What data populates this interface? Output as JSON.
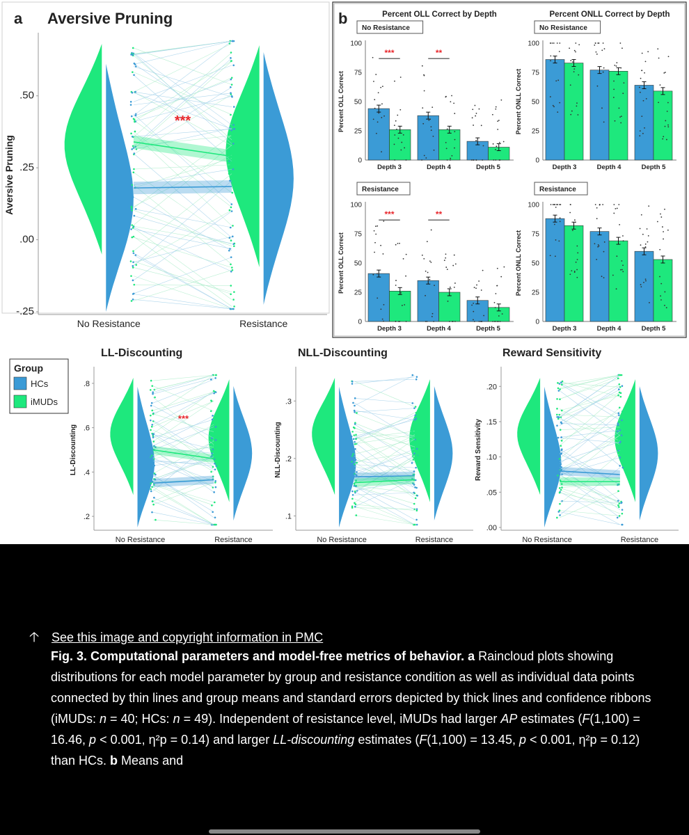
{
  "figure": {
    "panel_a_letter": "a",
    "panel_b_letter": "b",
    "legend": {
      "title": "Group",
      "items": [
        {
          "label": "HCs",
          "color": "#3b9bd6"
        },
        {
          "label": "iMUDs",
          "color": "#1ee87d"
        }
      ]
    }
  },
  "colors": {
    "hc": "#3b9bd6",
    "imud": "#1ee87d",
    "sig": "#e8262b"
  },
  "chart_data": [
    {
      "type": "raincloud",
      "title": "Aversive Pruning",
      "ylabel": "Aversive Pruning",
      "categories": [
        "No Resistance",
        "Resistance"
      ],
      "yticks": [
        "-.25",
        ".00",
        ".25",
        ".50"
      ],
      "ylim": [
        -0.25,
        0.7
      ],
      "series": [
        {
          "name": "HCs",
          "means": [
            0.18,
            0.185
          ]
        },
        {
          "name": "iMUDs",
          "means": [
            0.34,
            0.29
          ]
        }
      ],
      "annotation": "***"
    },
    {
      "type": "bar",
      "title": "Percent OLL Correct by Depth",
      "condition": "No Resistance",
      "ylabel": "Percent OLL Correct",
      "categories": [
        "Depth 3",
        "Depth 4",
        "Depth 5"
      ],
      "yticks": [
        "0",
        "25",
        "50",
        "75",
        "100"
      ],
      "ylim": [
        0,
        100
      ],
      "series": [
        {
          "name": "HCs",
          "values": [
            44,
            38,
            16
          ]
        },
        {
          "name": "iMUDs",
          "values": [
            26,
            26,
            11
          ]
        }
      ],
      "annotations": [
        "***",
        "**",
        ""
      ]
    },
    {
      "type": "bar",
      "title": "Percent ONLL Correct by Depth",
      "condition": "No Resistance",
      "ylabel": "Percent ONLL Correct",
      "categories": [
        "Depth 3",
        "Depth 4",
        "Depth 5"
      ],
      "yticks": [
        "0",
        "25",
        "50",
        "75",
        "100"
      ],
      "ylim": [
        0,
        100
      ],
      "series": [
        {
          "name": "HCs",
          "values": [
            86,
            77,
            64
          ]
        },
        {
          "name": "iMUDs",
          "values": [
            83,
            76,
            59
          ]
        }
      ],
      "annotations": [
        "",
        "",
        ""
      ]
    },
    {
      "type": "bar",
      "condition": "Resistance",
      "ylabel": "Percent OLL Correct",
      "categories": [
        "Depth 3",
        "Depth 4",
        "Depth 5"
      ],
      "yticks": [
        "0",
        "25",
        "50",
        "75",
        "100"
      ],
      "ylim": [
        0,
        100
      ],
      "series": [
        {
          "name": "HCs",
          "values": [
            41,
            35,
            18
          ]
        },
        {
          "name": "iMUDs",
          "values": [
            26,
            25,
            12
          ]
        }
      ],
      "annotations": [
        "***",
        "**",
        ""
      ]
    },
    {
      "type": "bar",
      "condition": "Resistance",
      "ylabel": "Percent ONLL Correct",
      "categories": [
        "Depth 3",
        "Depth 4",
        "Depth 5"
      ],
      "yticks": [
        "0",
        "25",
        "50",
        "75",
        "100"
      ],
      "ylim": [
        0,
        100
      ],
      "series": [
        {
          "name": "HCs",
          "values": [
            88,
            77,
            60
          ]
        },
        {
          "name": "iMUDs",
          "values": [
            82,
            69,
            53
          ]
        }
      ],
      "annotations": [
        "",
        "",
        ""
      ]
    },
    {
      "type": "raincloud",
      "title": "LL-Discounting",
      "ylabel": "LL-Discounting",
      "categories": [
        "No Resistance",
        "Resistance"
      ],
      "yticks": [
        ".2",
        ".4",
        ".6",
        ".8"
      ],
      "ylim": [
        0.15,
        0.85
      ],
      "series": [
        {
          "name": "HCs",
          "means": [
            0.35,
            0.365
          ]
        },
        {
          "name": "iMUDs",
          "means": [
            0.5,
            0.46
          ]
        }
      ],
      "annotation": "***"
    },
    {
      "type": "raincloud",
      "title": "NLL-Discounting",
      "ylabel": "NLL-Discounting",
      "categories": [
        "No Resistance",
        "Resistance"
      ],
      "yticks": [
        ".1",
        ".2",
        ".3"
      ],
      "ylim": [
        0.08,
        0.35
      ],
      "series": [
        {
          "name": "HCs",
          "means": [
            0.168,
            0.17
          ]
        },
        {
          "name": "iMUDs",
          "means": [
            0.158,
            0.163
          ]
        }
      ],
      "annotation": ""
    },
    {
      "type": "raincloud",
      "title": "Reward Sensitivity",
      "ylabel": "Reward Sensitivity",
      "categories": [
        "No Resistance",
        "Resistance"
      ],
      "yticks": [
        ".00",
        ".05",
        ".10",
        ".15",
        ".20"
      ],
      "ylim": [
        0.0,
        0.22
      ],
      "series": [
        {
          "name": "HCs",
          "means": [
            0.08,
            0.075
          ]
        },
        {
          "name": "iMUDs",
          "means": [
            0.065,
            0.065
          ]
        }
      ],
      "annotation": ""
    }
  ],
  "caption": {
    "link": "See this image and copyright information in PMC",
    "fig_label": "Fig. 3. Computational parameters and model-free metrics of behavior.",
    "a_label": "a",
    "text1": " Raincloud plots showing distributions for each model parameter by group and resistance condition as well as individual data points connected by thin lines and group means and standard errors depicted by thick lines and confidence ribbons (iMUDs: ",
    "n1": "n",
    "text2": " = 40; HCs: ",
    "n2": "n",
    "text3": " = 49). Independent of resistance level, iMUDs had larger ",
    "ap": "AP",
    "text4": " estimates (",
    "f1": "F",
    "text5": "(1,100) = 16.46, ",
    "p1": "p",
    "text6": " < 0.001, η²p = 0.14) and larger ",
    "lld": "LL-discounting",
    "text7": " estimates (",
    "f2": "F",
    "text8": "(1,100) = 13.45, ",
    "p2": "p",
    "text9": " < 0.001, η²p = 0.12) than HCs. ",
    "b_label": "b",
    "text10": " Means and"
  }
}
